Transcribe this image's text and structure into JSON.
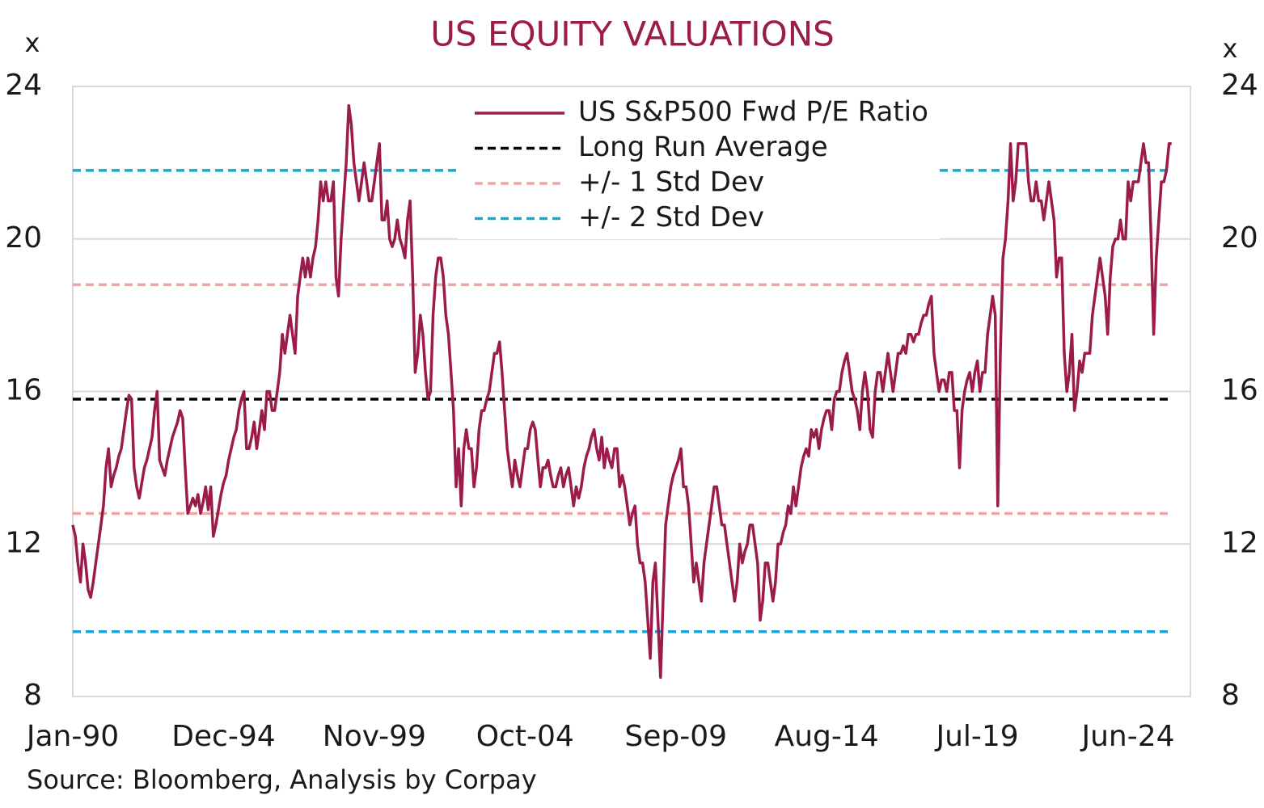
{
  "chart_data": {
    "type": "line",
    "title": "US EQUITY VALUATIONS",
    "ylabel": "x",
    "y2label": "x",
    "source": "Source: Bloomberg, Analysis by Corpay",
    "categories": [
      "Jan-90",
      null,
      null,
      null,
      null,
      null,
      null,
      null,
      null,
      null,
      null,
      null,
      null,
      null,
      null,
      null,
      null,
      null,
      null,
      null,
      null,
      null,
      null,
      null,
      null,
      null,
      null,
      null,
      null,
      null,
      null,
      null,
      null,
      null,
      null,
      null,
      null,
      null,
      null,
      null,
      null,
      null,
      null,
      null,
      null,
      null,
      null,
      null,
      null,
      null,
      null,
      null,
      null,
      null,
      null,
      null,
      null,
      null,
      null,
      "Dec-94",
      null,
      null,
      null,
      null,
      null,
      null,
      null,
      null,
      null,
      null,
      null,
      null,
      null,
      null,
      null,
      null,
      null,
      null,
      null,
      null,
      null,
      null,
      null,
      null,
      null,
      null,
      null,
      null,
      null,
      null,
      null,
      null,
      null,
      null,
      null,
      null,
      null,
      null,
      null,
      null,
      null,
      null,
      null,
      null,
      null,
      null,
      null,
      null,
      null,
      null,
      null,
      null,
      null,
      null,
      null,
      null,
      null,
      null,
      "Nov-99",
      null,
      null,
      null,
      null,
      null,
      null,
      null,
      null,
      null,
      null,
      null,
      null,
      null,
      null,
      null,
      null,
      null,
      null,
      null,
      null,
      null,
      null,
      null,
      null,
      null,
      null,
      null,
      null,
      null,
      null,
      null,
      null,
      null,
      null,
      null,
      null,
      null,
      null,
      null,
      null,
      null,
      null,
      null,
      null,
      null,
      null,
      null,
      null,
      null,
      null,
      null,
      null,
      null,
      null,
      null,
      null,
      null,
      null,
      "Oct-04",
      null,
      null,
      null,
      null,
      null,
      null,
      null,
      null,
      null,
      null,
      null,
      null,
      null,
      null,
      null,
      null,
      null,
      null,
      null,
      null,
      null,
      null,
      null,
      null,
      null,
      null,
      null,
      null,
      null,
      null,
      null,
      null,
      null,
      null,
      null,
      null,
      null,
      null,
      null,
      null,
      null,
      null,
      null,
      null,
      null,
      null,
      null,
      null,
      null,
      null,
      null,
      null,
      null,
      null,
      null,
      null,
      null,
      null,
      "Sep-09",
      null,
      null,
      null,
      null,
      null,
      null,
      null,
      null,
      null,
      null,
      null,
      null,
      null,
      null,
      null,
      null,
      null,
      null,
      null,
      null,
      null,
      null,
      null,
      null,
      null,
      null,
      null,
      null,
      null,
      null,
      null,
      null,
      null,
      null,
      null,
      null,
      null,
      null,
      null,
      null,
      null,
      null,
      null,
      null,
      null,
      null,
      null,
      null,
      null,
      null,
      null,
      null,
      null,
      null,
      null,
      null,
      null,
      null,
      "Aug-14",
      null,
      null,
      null,
      null,
      null,
      null,
      null,
      null,
      null,
      null,
      null,
      null,
      null,
      null,
      null,
      null,
      null,
      null,
      null,
      null,
      null,
      null,
      null,
      null,
      null,
      null,
      null,
      null,
      null,
      null,
      null,
      null,
      null,
      null,
      null,
      null,
      null,
      null,
      null,
      null,
      null,
      null,
      null,
      null,
      null,
      null,
      null,
      null,
      null,
      null,
      null,
      null,
      null,
      null,
      null,
      null,
      null,
      null,
      "Jul-19",
      null,
      null,
      null,
      null,
      null,
      null,
      null,
      null,
      null,
      null,
      null,
      null,
      null,
      null,
      null,
      null,
      null,
      null,
      null,
      null,
      null,
      null,
      null,
      null,
      null,
      null,
      null,
      null,
      null,
      null,
      null,
      null,
      null,
      null,
      null,
      null,
      null,
      null,
      null,
      null,
      null,
      null,
      null,
      null,
      null,
      null,
      null,
      null,
      null,
      null,
      null,
      null,
      null,
      null,
      null,
      null,
      null,
      null,
      "Jun-24",
      null,
      null,
      null,
      null,
      null,
      null,
      null,
      null,
      null,
      null,
      null,
      null,
      null,
      null,
      null,
      null,
      null
    ],
    "series": [
      {
        "name": "US S&P500 Fwd P/E Ratio",
        "color": "#9b1b4b",
        "values": [
          12.5,
          12.2,
          11.5,
          11.0,
          12.0,
          11.5,
          10.8,
          10.6,
          11.0,
          11.5,
          12.0,
          12.5,
          13.0,
          14.0,
          14.5,
          13.5,
          13.8,
          14.0,
          14.3,
          14.5,
          15.0,
          15.5,
          15.9,
          15.8,
          14.0,
          13.5,
          13.2,
          13.6,
          14.0,
          14.2,
          14.5,
          14.8,
          15.5,
          16.0,
          14.2,
          14.0,
          13.8,
          14.2,
          14.5,
          14.8,
          15.0,
          15.2,
          15.5,
          15.3,
          14.0,
          12.8,
          13.0,
          13.2,
          13.0,
          13.3,
          12.8,
          13.1,
          13.5,
          12.9,
          13.5,
          12.2,
          12.5,
          12.9,
          13.3,
          13.6,
          13.8,
          14.2,
          14.5,
          14.8,
          15.0,
          15.5,
          15.8,
          16.0,
          14.5,
          14.5,
          14.8,
          15.2,
          14.5,
          15,
          15.5,
          15,
          16,
          16,
          15.5,
          15.5,
          16,
          16.5,
          17.5,
          17,
          17.5,
          18,
          17.5,
          17,
          18.5,
          19,
          19.5,
          19,
          19.5,
          19,
          19.5,
          19.8,
          20.5,
          21.5,
          21,
          21.5,
          21,
          21,
          21.5,
          19,
          18.5,
          20,
          21,
          22,
          23.5,
          23,
          22,
          21.5,
          21,
          21.5,
          22,
          21.5,
          21,
          21,
          21.5,
          22,
          22.5,
          20.5,
          20.5,
          21,
          20,
          19.8,
          20,
          20.5,
          20,
          19.8,
          19.5,
          20.5,
          21,
          19,
          16.5,
          17,
          18,
          17.5,
          16.5,
          15.8,
          16,
          18,
          19,
          19.5,
          19.5,
          19,
          18,
          17.5,
          16.5,
          15.5,
          13.5,
          14.5,
          13,
          14.5,
          15,
          14.5,
          14.5,
          13.5,
          14.0,
          15.0,
          15.5,
          15.5,
          15.8,
          16.0,
          16.5,
          17.0,
          17.0,
          17.3,
          16.5,
          15.5,
          14.5,
          14.0,
          13.5,
          14.2,
          13.8,
          13.5,
          14.0,
          14.5,
          14.5,
          15.0,
          15.2,
          15.0,
          14.2,
          13.5,
          14.0,
          14.0,
          14.2,
          13.8,
          13.5,
          13.5,
          13.8,
          14.0,
          13.5,
          13.8,
          14.0,
          13.5,
          13.0,
          13.5,
          13.2,
          13.5,
          14.0,
          14.3,
          14.5,
          14.8,
          15.0,
          14.5,
          14.2,
          14.8,
          14.0,
          14.5,
          14.2,
          14.0,
          14.5,
          14.5,
          13.5,
          13.8,
          13.5,
          13.0,
          12.5,
          12.8,
          13.0,
          12.0,
          11.5,
          11.5,
          11.0,
          10.0,
          9.0,
          11.0,
          11.5,
          10.0,
          8.5,
          10.5,
          12.5,
          13.0,
          13.5,
          13.8,
          14.0,
          14.2,
          14.5,
          13.5,
          13.5,
          13.0,
          12.0,
          11.0,
          11.5,
          11.0,
          10.5,
          11.5,
          12.0,
          12.5,
          13.0,
          13.5,
          13.5,
          13.0,
          12.5,
          12.5,
          12.0,
          11.5,
          11.0,
          10.5,
          11.0,
          12.0,
          11.5,
          11.8,
          12.0,
          12.5,
          12.5,
          12.0,
          11.5,
          10.0,
          10.5,
          11.5,
          11.5,
          11.0,
          10.5,
          11.0,
          12.0,
          12.0,
          12.3,
          12.5,
          13.0,
          12.8,
          13.5,
          13.0,
          13.5,
          14.0,
          14.3,
          14.5,
          14.3,
          15.0,
          14.8,
          15.0,
          14.5,
          15.0,
          15.3,
          15.5,
          15.5,
          15.0,
          15.8,
          16.0,
          16.0,
          16.5,
          16.8,
          17.0,
          16.5,
          16.0,
          15.8,
          15.5,
          15.0,
          16.0,
          16.5,
          16.0,
          15.0,
          14.8,
          16.0,
          16.5,
          16.5,
          16.0,
          16.5,
          17.0,
          16.5,
          16.0,
          16.5,
          17.0,
          17.0,
          17.2,
          17.0,
          17.5,
          17.5,
          17.3,
          17.5,
          17.5,
          17.8,
          18.0,
          18.0,
          18.3,
          18.5,
          17.0,
          16.5,
          16.0,
          16.3,
          16.3,
          16.0,
          16.5,
          16.5,
          15.5,
          15.5,
          14.0,
          15.5,
          16.0,
          16.3,
          16.5,
          16.0,
          16.5,
          16.8,
          16.0,
          16.5,
          16.5,
          17.5,
          18.0,
          18.5,
          18.0,
          13.0,
          17.0,
          19.5,
          20.0,
          21.0,
          22.5,
          21.0,
          21.5,
          22.5,
          22.5,
          22.5,
          22.5,
          21.5,
          21.0,
          21.0,
          21.5,
          21.0,
          21.0,
          20.5,
          21.0,
          21.5,
          21.0,
          20.5,
          19.0,
          19.5,
          19.5,
          17.0,
          16.0,
          16.5,
          17.5,
          15.5,
          16.0,
          16.8,
          16.5,
          17.0,
          17.0,
          17.0,
          18.0,
          18.5,
          19.0,
          19.5,
          19.0,
          18.5,
          17.5,
          19.0,
          19.8,
          20.0,
          20.0,
          20.5,
          20.0,
          20.0,
          21.5,
          21.0,
          21.5,
          21.5,
          21.5,
          22.0,
          22.5,
          22.0,
          22.0,
          20.0,
          17.5,
          19.5,
          20.5,
          21.5,
          21.5,
          21.8,
          22.5,
          22.5
        ]
      }
    ],
    "reference_lines": [
      {
        "name": "Long Run Average",
        "color": "#000000",
        "values": [
          15.8
        ]
      },
      {
        "name": "+/- 1 Std Dev",
        "color": "#f4a3a3",
        "values": [
          18.8,
          12.8
        ]
      },
      {
        "name": "+/- 2 Std Dev",
        "color": "#1aa7d8",
        "values": [
          21.8,
          9.7
        ]
      }
    ],
    "ylim": [
      8,
      24
    ],
    "yticks": [
      8,
      12,
      16,
      20,
      24
    ],
    "y2lim": [
      8,
      24
    ],
    "y2ticks": [
      8,
      12,
      16,
      20,
      24
    ],
    "grid": true
  }
}
